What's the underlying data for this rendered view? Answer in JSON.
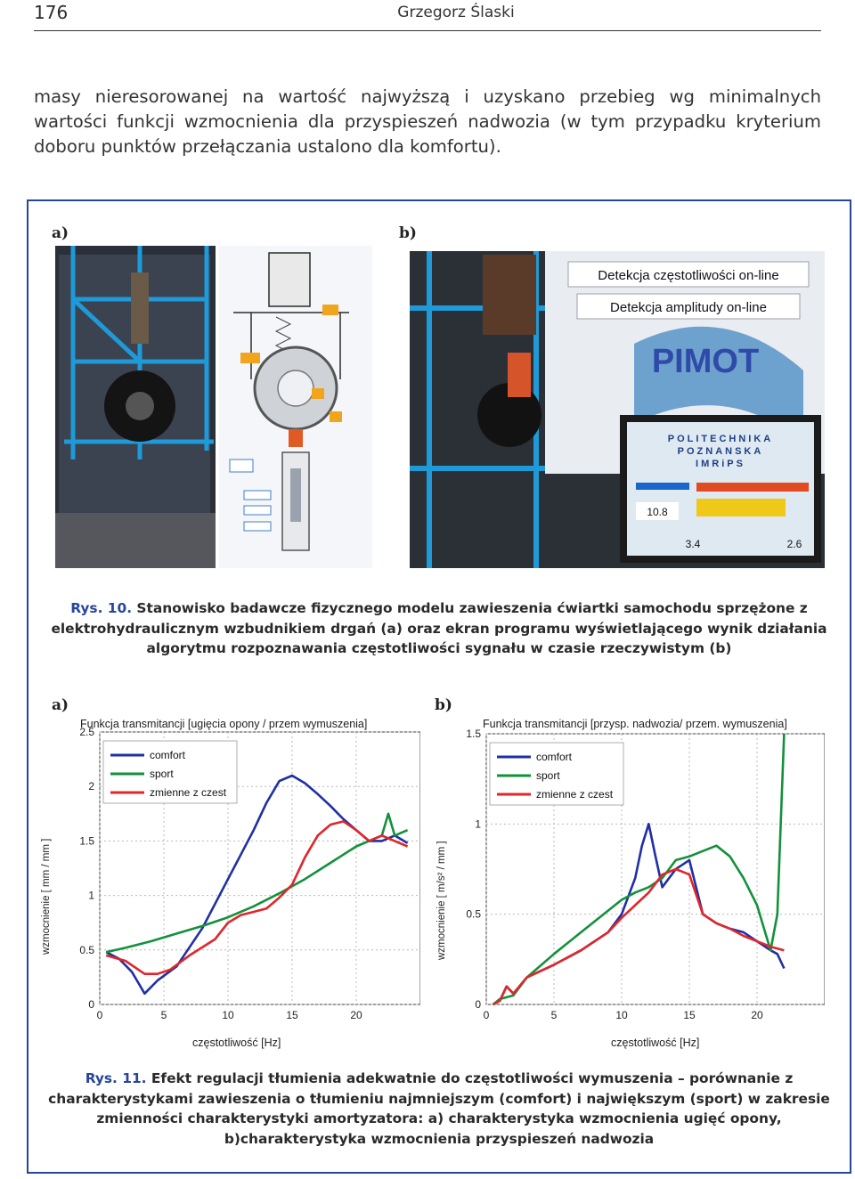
{
  "header": {
    "page_number": "176",
    "author": "Grzegorz Ślaski"
  },
  "body_text": "masy nieresorowanej na wartość najwyższą i uzyskano przebieg wg minimalnych wartości funkcji wzmocnienia dla przyspieszeń nadwozia (w tym przypadku kryterium doboru punktów przełączania ustalono dla komfortu).",
  "figure10": {
    "panel_a_label": "a)",
    "panel_b_label": "b)",
    "photo_b_overlay": [
      "Detekcja częstotliwości on-line",
      "Detekcja amplitudy on-line"
    ],
    "photo_b_logo": "PIMOT",
    "photo_b_screen_lines": [
      "POLITECHNIKA",
      "POZNANSKA",
      "IMRiPS"
    ],
    "photo_b_screen_values": [
      "10.8",
      "3.4",
      "2.6"
    ],
    "caption_number": "Rys. 10.",
    "caption_text": "Stanowisko badawcze fizycznego modelu zawieszenia ćwiartki samochodu sprzężone z elektrohydraulicznym wzbudnikiem drgań (a) oraz ekran programu wyświetlającego wynik działania algorytmu rozpoznawania częstotliwości sygnału w czasie rzeczywistym (b)"
  },
  "figure11": {
    "caption_number": "Rys. 11.",
    "caption_text": "Efekt regulacji tłumienia adekwatnie do częstotliwości wymuszenia – porównanie z charakterystykami zawieszenia o tłumieniu najmniejszym (comfort) i największym (sport) w zakresie zmienności charakterystyki amortyzatora: a) charakterystyka wzmocnienia ugięć opony, b)charakterystyka wzmocnienia przyspieszeń nadwozia"
  },
  "colors": {
    "comfort": "#1f2fa5",
    "sport": "#13913a",
    "zmienne": "#e0262a",
    "frame_blue": "#27469b"
  },
  "chart_data": [
    {
      "panel": "a)",
      "type": "line",
      "title": "Funkcja transmitancji [ugięcia opony / przem wymuszenia]",
      "xlabel": "częstotliwość [Hz]",
      "ylabel": "wzmocnienie [ mm / mm ]",
      "xlim": [
        0,
        25
      ],
      "ylim": [
        0,
        2.5
      ],
      "xticks": [
        "0",
        "5",
        "10",
        "15",
        "20"
      ],
      "yticks": [
        "0",
        "0.5",
        "1",
        "1.5",
        "2",
        "2.5"
      ],
      "grid": true,
      "legend_position": "top-left",
      "series": [
        {
          "name": "comfort",
          "color": "#1f2fa5",
          "x": [
            0.5,
            1.5,
            2.5,
            3.0,
            3.5,
            4.5,
            6,
            8,
            10,
            12,
            13,
            14,
            15,
            16,
            17,
            18,
            19,
            20,
            21,
            22,
            23,
            24
          ],
          "y": [
            0.48,
            0.42,
            0.3,
            0.2,
            0.1,
            0.22,
            0.35,
            0.7,
            1.15,
            1.6,
            1.85,
            2.05,
            2.1,
            2.03,
            1.93,
            1.82,
            1.7,
            1.6,
            1.5,
            1.5,
            1.55,
            1.48
          ]
        },
        {
          "name": "sport",
          "color": "#13913a",
          "x": [
            0.5,
            2,
            4,
            6,
            8,
            10,
            12,
            14,
            16,
            18,
            20,
            21,
            22,
            22.5,
            23,
            24
          ],
          "y": [
            0.48,
            0.52,
            0.58,
            0.65,
            0.72,
            0.8,
            0.9,
            1.02,
            1.15,
            1.3,
            1.45,
            1.5,
            1.55,
            1.75,
            1.55,
            1.6
          ]
        },
        {
          "name": "zmienne z czest",
          "color": "#e0262a",
          "x": [
            0.5,
            2,
            3.5,
            4.5,
            5.5,
            7,
            9,
            10,
            11,
            12,
            13,
            14,
            15,
            16,
            17,
            18,
            19,
            20,
            21,
            22,
            23,
            24
          ],
          "y": [
            0.45,
            0.4,
            0.28,
            0.28,
            0.32,
            0.45,
            0.6,
            0.75,
            0.82,
            0.85,
            0.88,
            0.98,
            1.1,
            1.35,
            1.55,
            1.65,
            1.68,
            1.6,
            1.5,
            1.55,
            1.5,
            1.45
          ]
        }
      ]
    },
    {
      "panel": "b)",
      "type": "line",
      "title": "Funkcja transmitancji [przysp. nadwozia/ przem. wymuszenia]",
      "xlabel": "częstotliwość [Hz]",
      "ylabel": "wzmocnienie [ m/s² / mm ]",
      "xlim": [
        0,
        25
      ],
      "ylim": [
        0,
        1.5
      ],
      "xticks": [
        "0",
        "5",
        "10",
        "15",
        "20"
      ],
      "yticks": [
        "0",
        "0.5",
        "1",
        "1.5"
      ],
      "grid": true,
      "legend_position": "top-left",
      "series": [
        {
          "name": "comfort",
          "color": "#1f2fa5",
          "x": [
            0.5,
            1,
            1.5,
            2,
            3,
            5,
            7,
            9,
            10,
            11,
            11.5,
            12,
            12.5,
            13,
            14,
            15,
            16,
            17,
            18,
            19,
            20,
            21,
            21.5,
            22
          ],
          "y": [
            0,
            0.02,
            0.1,
            0.06,
            0.15,
            0.22,
            0.3,
            0.4,
            0.5,
            0.7,
            0.88,
            1.0,
            0.82,
            0.65,
            0.75,
            0.8,
            0.5,
            0.45,
            0.42,
            0.4,
            0.35,
            0.3,
            0.28,
            0.2
          ]
        },
        {
          "name": "sport",
          "color": "#13913a",
          "x": [
            0.5,
            1,
            2,
            3,
            5,
            7,
            9,
            10,
            11,
            12,
            13,
            14,
            15,
            16,
            17,
            18,
            19,
            20,
            21,
            21.5,
            22
          ],
          "y": [
            0,
            0.03,
            0.05,
            0.15,
            0.28,
            0.4,
            0.52,
            0.58,
            0.62,
            0.65,
            0.7,
            0.8,
            0.82,
            0.85,
            0.88,
            0.82,
            0.7,
            0.55,
            0.3,
            0.5,
            1.5
          ]
        },
        {
          "name": "zmienne z czest",
          "color": "#e0262a",
          "x": [
            0.5,
            1,
            1.5,
            2,
            3,
            5,
            7,
            9,
            10,
            11,
            12,
            13,
            14,
            15,
            16,
            17,
            18,
            19,
            20,
            21,
            22
          ],
          "y": [
            0,
            0.02,
            0.1,
            0.06,
            0.15,
            0.22,
            0.3,
            0.4,
            0.48,
            0.55,
            0.62,
            0.72,
            0.75,
            0.72,
            0.5,
            0.45,
            0.42,
            0.38,
            0.35,
            0.32,
            0.3
          ]
        }
      ]
    }
  ]
}
